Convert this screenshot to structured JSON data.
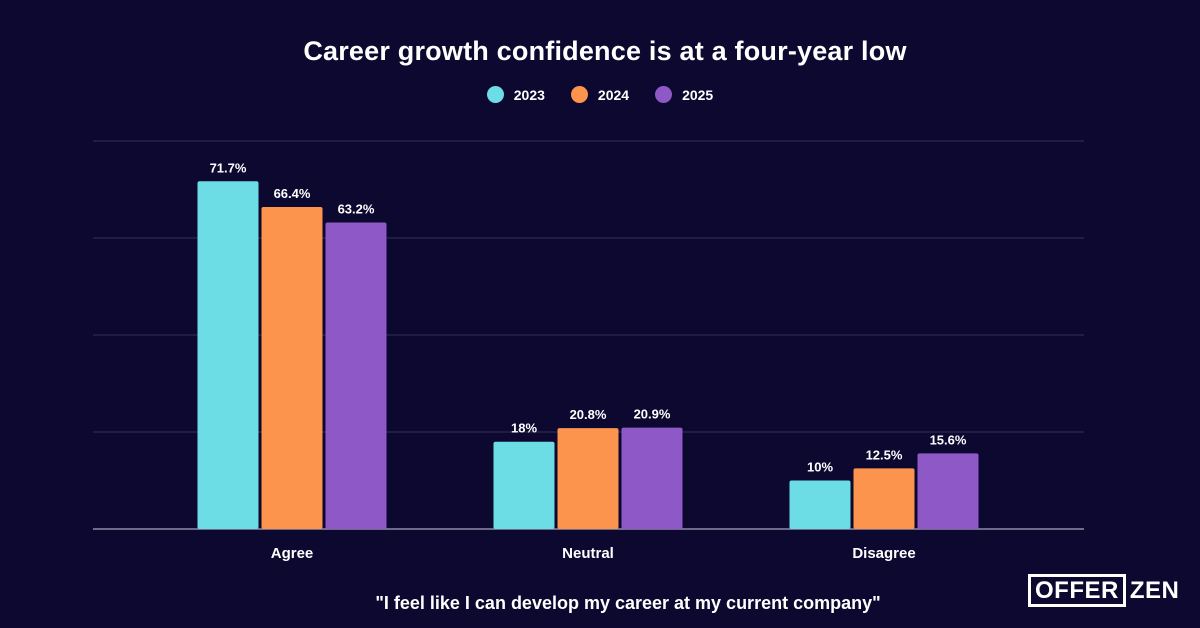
{
  "title": "Career growth confidence is at a four-year low",
  "caption": "\"I feel like I can develop my career at my current company\"",
  "logo": {
    "boxed": "OFFER",
    "rest": "ZEN"
  },
  "legend": [
    {
      "label": "2023",
      "color": "#6ddde5"
    },
    {
      "label": "2024",
      "color": "#fd944d"
    },
    {
      "label": "2025",
      "color": "#8e58c6"
    }
  ],
  "chart_data": {
    "type": "bar",
    "title": "Career growth confidence is at a four-year low",
    "categories": [
      "Agree",
      "Neutral",
      "Disagree"
    ],
    "series": [
      {
        "name": "2023",
        "color": "#6ddde5",
        "values": [
          71.7,
          18,
          10
        ],
        "labels": [
          "71.7%",
          "18%",
          "10%"
        ]
      },
      {
        "name": "2024",
        "color": "#fd944d",
        "values": [
          66.4,
          20.8,
          12.5
        ],
        "labels": [
          "66.4%",
          "20.8%",
          "12.5%"
        ]
      },
      {
        "name": "2025",
        "color": "#8e58c6",
        "values": [
          63.2,
          20.9,
          15.6
        ],
        "labels": [
          "63.2%",
          "20.9%",
          "15.6%"
        ]
      }
    ],
    "ylim": [
      0,
      80
    ],
    "grid": true,
    "legend_position": "top-center",
    "xlabel": "",
    "ylabel": ""
  }
}
